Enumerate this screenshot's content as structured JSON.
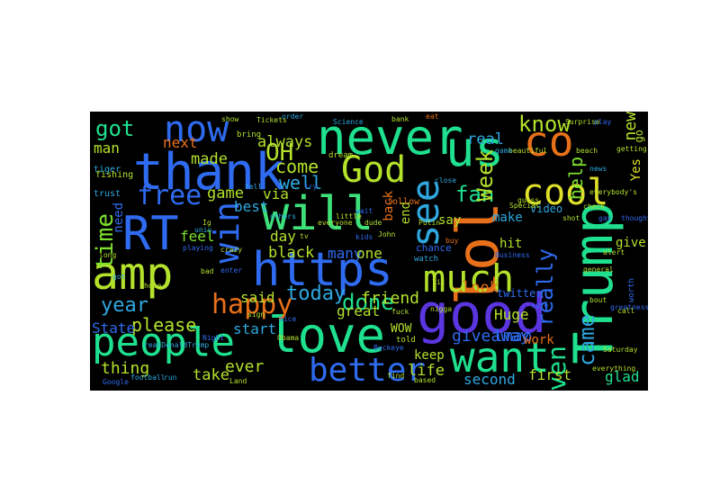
{
  "words": [
    {
      "text": "https",
      "color": "#2f6bf0"
    },
    {
      "text": "lol",
      "color": "#e8701a"
    },
    {
      "text": "good",
      "color": "#5a35e0"
    },
    {
      "text": "thank",
      "color": "#2f6bf0"
    },
    {
      "text": "amp",
      "color": "#b4e22c"
    },
    {
      "text": "people",
      "color": "#1fe08f"
    },
    {
      "text": "RT",
      "color": "#2f6bf0"
    },
    {
      "text": "love",
      "color": "#1fe08f"
    },
    {
      "text": "never",
      "color": "#1fe08f"
    },
    {
      "text": "will",
      "color": "#3ee07a"
    },
    {
      "text": "want",
      "color": "#1fe08f"
    },
    {
      "text": "Trump",
      "color": "#1fe08f"
    },
    {
      "text": "much",
      "color": "#b4e22c"
    },
    {
      "text": "us",
      "color": "#1fe08f"
    },
    {
      "text": "win",
      "color": "#2f6bf0"
    },
    {
      "text": "better",
      "color": "#2f6bf0"
    },
    {
      "text": "God",
      "color": "#b4e22c"
    },
    {
      "text": "now",
      "color": "#2f6bf0"
    },
    {
      "text": "cool",
      "color": "#e0e02a"
    },
    {
      "text": "see",
      "color": "#2fa8e0"
    },
    {
      "text": "co",
      "color": "#e8701a"
    },
    {
      "text": "free",
      "color": "#2f6bf0"
    },
    {
      "text": "time",
      "color": "#7ee02e"
    },
    {
      "text": "OH",
      "color": "#b4e22c"
    },
    {
      "text": "got",
      "color": "#1fe08f"
    },
    {
      "text": "know",
      "color": "#b4e22c"
    },
    {
      "text": "happy",
      "color": "#e8701a"
    },
    {
      "text": "year",
      "color": "#2fa8e0"
    },
    {
      "text": "even",
      "color": "#1fe08f"
    },
    {
      "text": "came",
      "color": "#2fa8e0"
    },
    {
      "text": "fan",
      "color": "#1fe08f"
    },
    {
      "text": "Week",
      "color": "#b4e22c"
    },
    {
      "text": "really",
      "color": "#2f6bf0"
    },
    {
      "text": "come",
      "color": "#b4e22c"
    },
    {
      "text": "well",
      "color": "#2fa8e0"
    },
    {
      "text": "today",
      "color": "#2fa8e0"
    },
    {
      "text": "please",
      "color": "#b4e22c"
    },
    {
      "text": "done",
      "color": "#1fe08f"
    },
    {
      "text": "help",
      "color": "#7ee02e"
    },
    {
      "text": "new",
      "color": "#b4e22c"
    },
    {
      "text": "made",
      "color": "#b4e22c"
    },
    {
      "text": "game",
      "color": "#b4e22c"
    },
    {
      "text": "always",
      "color": "#b4e22c"
    },
    {
      "text": "via",
      "color": "#b4e22c"
    },
    {
      "text": "friend",
      "color": "#b4e22c"
    },
    {
      "text": "real",
      "color": "#2fa8e0"
    },
    {
      "text": "thing",
      "color": "#b4e22c"
    },
    {
      "text": "ever",
      "color": "#b4e22c"
    },
    {
      "text": "take",
      "color": "#b4e22c"
    },
    {
      "text": "life",
      "color": "#b4e22c"
    },
    {
      "text": "man",
      "color": "#b4e22c"
    },
    {
      "text": "best",
      "color": "#2fa8e0"
    },
    {
      "text": "feel",
      "color": "#7ee02e"
    },
    {
      "text": "next",
      "color": "#e8701a"
    },
    {
      "text": "great",
      "color": "#b4e22c"
    },
    {
      "text": "said",
      "color": "#b4e22c"
    },
    {
      "text": "start",
      "color": "#2fa8e0"
    },
    {
      "text": "State",
      "color": "#2f6bf0"
    },
    {
      "text": "day",
      "color": "#b4e22c"
    },
    {
      "text": "black",
      "color": "#b4e22c"
    },
    {
      "text": "many",
      "color": "#2f6bf0"
    },
    {
      "text": "one",
      "color": "#b4e22c"
    },
    {
      "text": "back",
      "color": "#e8701a"
    },
    {
      "text": "end",
      "color": "#b4e22c"
    },
    {
      "text": "say",
      "color": "#b4e22c"
    },
    {
      "text": "look",
      "color": "#e8701a"
    },
    {
      "text": "make",
      "color": "#2fa8e0"
    },
    {
      "text": "hit",
      "color": "#b4e22c"
    },
    {
      "text": "give",
      "color": "#b4e22c"
    },
    {
      "text": "giveaway",
      "color": "#2f6bf0"
    },
    {
      "text": "lmao",
      "color": "#2f6bf0"
    },
    {
      "text": "keep",
      "color": "#b4e22c"
    },
    {
      "text": "Huge",
      "color": "#b4e22c"
    },
    {
      "text": "work",
      "color": "#e8701a"
    },
    {
      "text": "glad",
      "color": "#1fe08f"
    },
    {
      "text": "first",
      "color": "#b4e22c"
    },
    {
      "text": "second",
      "color": "#2fa8e0"
    },
    {
      "text": "need",
      "color": "#2f6bf0"
    },
    {
      "text": "Yes",
      "color": "#e0e02a"
    },
    {
      "text": "go",
      "color": "#b4e22c"
    },
    {
      "text": "video",
      "color": "#2fa8e0"
    },
    {
      "text": "twitter",
      "color": "#2f6bf0"
    },
    {
      "text": "WOW",
      "color": "#b4e22c"
    },
    {
      "text": "chance",
      "color": "#2f6bf0"
    },
    {
      "text": "trust",
      "color": "#2fa8e0"
    },
    {
      "text": "tiger",
      "color": "#2fa8e0"
    },
    {
      "text": "fishing",
      "color": "#b4e22c"
    },
    {
      "text": "bring",
      "color": "#b4e22c"
    },
    {
      "text": "dream",
      "color": "#b4e22c"
    },
    {
      "text": "follow",
      "color": "#e8701a"
    },
    {
      "text": "watch",
      "color": "#2fa8e0"
    },
    {
      "text": "told",
      "color": "#b4e22c"
    },
    {
      "text": "worth",
      "color": "#2f6bf0"
    },
    {
      "text": "beautiful",
      "color": "#b4e22c"
    },
    {
      "text": "Saturday",
      "color": "#b4e22c"
    },
    {
      "text": "everything",
      "color": "#b4e22c"
    },
    {
      "text": "greatness",
      "color": "#2f6bf0"
    },
    {
      "text": "general",
      "color": "#b4e22c"
    },
    {
      "text": "Special",
      "color": "#b4e22c"
    },
    {
      "text": "everyone",
      "color": "#b4e22c"
    },
    {
      "text": "little",
      "color": "#b4e22c"
    },
    {
      "text": "unio",
      "color": "#2fa8e0"
    },
    {
      "text": "playing",
      "color": "#2f6bf0"
    },
    {
      "text": "Google",
      "color": "#2f6bf0"
    },
    {
      "text": "football",
      "color": "#2fa8e0"
    },
    {
      "text": "getting",
      "color": "#b4e22c"
    },
    {
      "text": "beach",
      "color": "#b4e22c"
    },
    {
      "text": "tell",
      "color": "#2fa8e0"
    },
    {
      "text": "sign",
      "color": "#b4e22c"
    },
    {
      "text": "call",
      "color": "#b4e22c"
    },
    {
      "text": "Land",
      "color": "#b4e22c"
    },
    {
      "text": "realDonaldTrump",
      "color": "#2fa8e0"
    },
    {
      "text": "Buckeye",
      "color": "#2f6bf0"
    },
    {
      "text": "Putin",
      "color": "#b4e22c"
    },
    {
      "text": "Surprise",
      "color": "#b4e22c"
    },
    {
      "text": "bad",
      "color": "#b4e22c"
    },
    {
      "text": "gay",
      "color": "#2f6bf0"
    },
    {
      "text": "long",
      "color": "#b4e22c"
    },
    {
      "text": "lit",
      "color": "#b4e22c"
    },
    {
      "text": "kids",
      "color": "#2f6bf0"
    },
    {
      "text": "John",
      "color": "#b4e22c"
    },
    {
      "text": "nice",
      "color": "#2f6bf0"
    },
    {
      "text": "Obama",
      "color": "#b4e22c"
    },
    {
      "text": "eat",
      "color": "#e8701a"
    },
    {
      "text": "game",
      "color": "#2fa8e0"
    },
    {
      "text": "bout",
      "color": "#b4e22c"
    },
    {
      "text": "thought",
      "color": "#2f6bf0"
    },
    {
      "text": "alert",
      "color": "#b4e22c"
    },
    {
      "text": "try",
      "color": "#2f6bf0"
    },
    {
      "text": "Tickets",
      "color": "#b4e22c"
    },
    {
      "text": "show",
      "color": "#b4e22c"
    },
    {
      "text": "Ig",
      "color": "#b4e22c"
    },
    {
      "text": "wait",
      "color": "#2f6bf0"
    },
    {
      "text": "play",
      "color": "#2f6bf0"
    },
    {
      "text": "nigga",
      "color": "#b4e22c"
    },
    {
      "text": "order",
      "color": "#2fa8e0"
    },
    {
      "text": "bank",
      "color": "#b4e22c"
    },
    {
      "text": "others",
      "color": "#2fa8e0"
    },
    {
      "text": "dude",
      "color": "#b4e22c"
    },
    {
      "text": "close",
      "color": "#2fa8e0"
    },
    {
      "text": "guess",
      "color": "#b4e22c"
    },
    {
      "text": "shot",
      "color": "#b4e22c"
    },
    {
      "text": "everybody's",
      "color": "#b4e22c"
    },
    {
      "text": "buy",
      "color": "#e8701a"
    },
    {
      "text": "sure",
      "color": "#2f6bf0"
    },
    {
      "text": "find",
      "color": "#b4e22c"
    },
    {
      "text": "based",
      "color": "#b4e22c"
    },
    {
      "text": "Business",
      "color": "#2f6bf0"
    },
    {
      "text": "fuck",
      "color": "#b4e22c"
    },
    {
      "text": "run",
      "color": "#2fa8e0"
    },
    {
      "text": "crazy",
      "color": "#b4e22c"
    },
    {
      "text": "enter",
      "color": "#2f6bf0"
    },
    {
      "text": "tv",
      "color": "#b4e22c"
    },
    {
      "text": "got",
      "color": "#2fa8e0"
    },
    {
      "text": "hope",
      "color": "#b4e22c"
    },
    {
      "text": "news",
      "color": "#2fa8e0"
    },
    {
      "text": "Science",
      "color": "#2fa8e0"
    },
    {
      "text": "Night",
      "color": "#2f6bf0"
    },
    {
      "text": "check",
      "color": "#b4e22c"
    }
  ]
}
